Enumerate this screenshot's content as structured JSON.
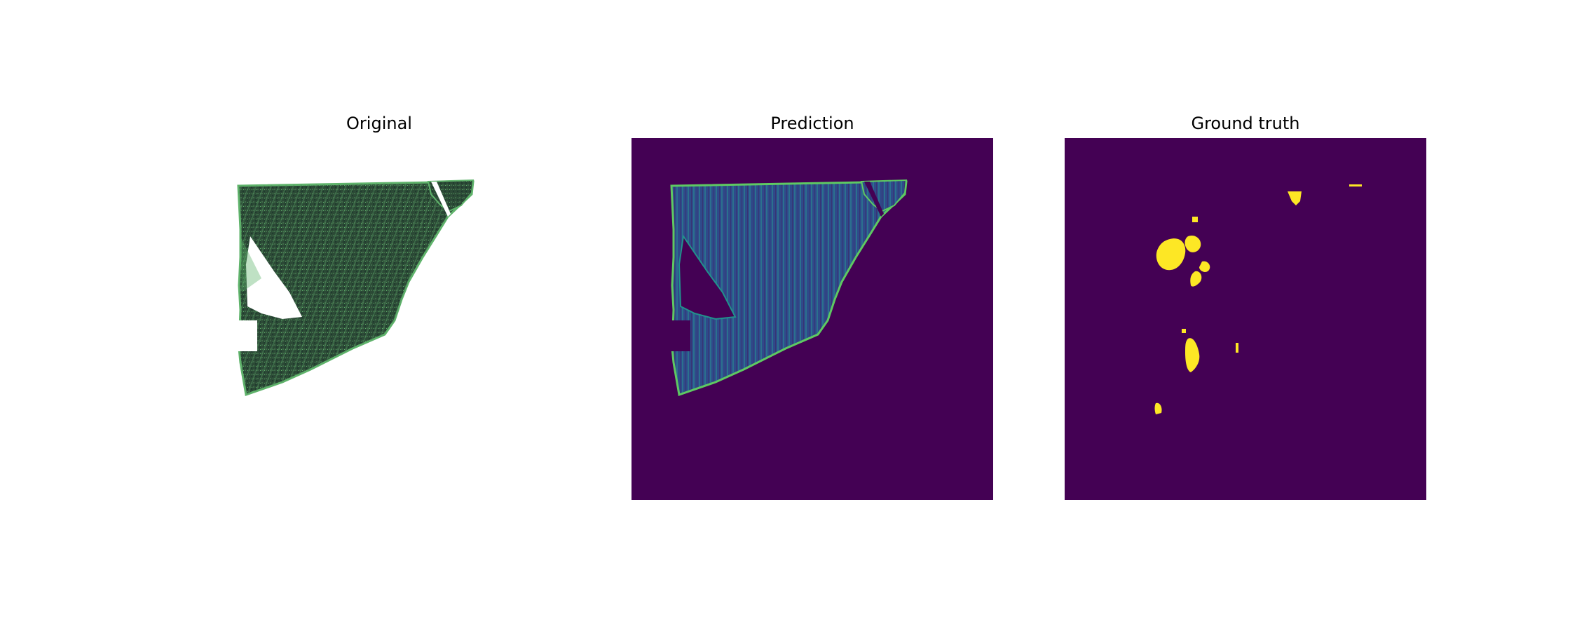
{
  "figure": {
    "panels": [
      {
        "title": "Original"
      },
      {
        "title": "Prediction"
      },
      {
        "title": "Ground truth"
      }
    ]
  },
  "colors": {
    "background": "#ffffff",
    "viridis_dark": "#440154",
    "viridis_yellow": "#fde725",
    "viridis_teal": "#21918c",
    "viridis_blue": "#3b528b",
    "vegetation_dark": "#2c4a36",
    "vegetation_light": "#5fb36b"
  }
}
